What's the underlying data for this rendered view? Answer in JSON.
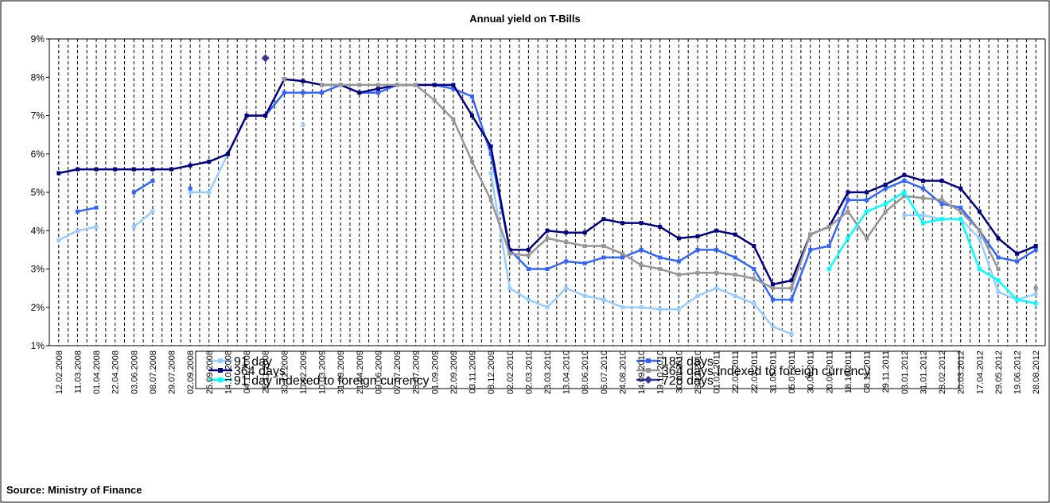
{
  "chart_data": {
    "type": "line",
    "title": "Annual yield on T-Bills",
    "source": "Source: Ministry of Finance",
    "categories": [
      "12.02.2008",
      "11.03.2008",
      "01.04.2008",
      "22.04.2008",
      "03.06.2008",
      "08.07.2008",
      "29.07.2008",
      "02.09.2008",
      "25.09.2008",
      "14.10.2008",
      "04.11.2008",
      "25.11.2008",
      "30.12.2008",
      "10.02.2009",
      "10.03.2009",
      "31.03.2009",
      "21.04.2009",
      "09.06.2009",
      "07.07.2009",
      "28.07.2009",
      "01.09.2009",
      "22.09.2009",
      "03.11.2009",
      "08.12.2009",
      "02.02.2010",
      "02.03.2010",
      "23.03.2010",
      "13.04.2010",
      "08.06.2010",
      "06.07.2010",
      "24.08.2010",
      "14.09.2010",
      "19.10.2010",
      "30.11.2010",
      "28.12.2010",
      "01.02.2011",
      "22.02.2011",
      "22.03.2011",
      "31.05.2011",
      "05.07.2011",
      "30.08.2011",
      "20.09.2011",
      "18.10.2011",
      "08.11.2011",
      "29.11.2011",
      "03.01.2012",
      "31.01.2012",
      "28.02.2012",
      "20.03.2012",
      "17.04.2012",
      "29.05.2012",
      "19.06.2012",
      "28.08.2012"
    ],
    "series": [
      {
        "name": "91 day",
        "color": "#99ccff",
        "marker": "square",
        "values": [
          3.75,
          4.0,
          4.1,
          null,
          4.1,
          4.5,
          null,
          5.0,
          5.0,
          6.0,
          null,
          null,
          null,
          6.75,
          null,
          null,
          7.6,
          7.6,
          7.8,
          null,
          null,
          null,
          null,
          5.5,
          2.5,
          2.2,
          2.0,
          2.5,
          2.3,
          2.2,
          2.0,
          2.0,
          1.95,
          1.95,
          2.3,
          2.5,
          2.3,
          2.1,
          1.5,
          1.3,
          null,
          null,
          null,
          null,
          null,
          4.4,
          4.4,
          4.3,
          4.3,
          3.8,
          2.4,
          2.2,
          2.35
        ]
      },
      {
        "name": "182 days",
        "color": "#3366ff",
        "marker": "square",
        "values": [
          null,
          4.5,
          4.6,
          null,
          5.0,
          5.3,
          null,
          5.1,
          null,
          6.0,
          7.0,
          7.0,
          7.6,
          7.6,
          7.6,
          7.8,
          7.6,
          7.6,
          7.8,
          7.8,
          7.8,
          7.7,
          7.5,
          6.0,
          3.5,
          3.0,
          3.0,
          3.2,
          3.15,
          3.3,
          3.3,
          3.5,
          3.3,
          3.2,
          3.5,
          3.5,
          3.3,
          3.0,
          2.2,
          2.2,
          3.5,
          3.6,
          4.8,
          4.8,
          5.1,
          5.3,
          5.1,
          4.7,
          4.6,
          4.0,
          3.3,
          3.2,
          3.5
        ]
      },
      {
        "name": "364 days",
        "color": "#000080",
        "marker": "square",
        "values": [
          5.5,
          5.6,
          5.6,
          5.6,
          5.6,
          5.6,
          5.6,
          5.7,
          5.8,
          6.0,
          7.0,
          7.0,
          7.95,
          7.9,
          7.8,
          7.8,
          7.6,
          7.7,
          7.8,
          7.8,
          7.8,
          7.8,
          7.0,
          6.2,
          3.5,
          3.5,
          4.0,
          3.95,
          3.95,
          4.3,
          4.2,
          4.2,
          4.1,
          3.8,
          3.85,
          4.0,
          3.9,
          3.6,
          2.6,
          2.7,
          3.9,
          4.1,
          5.0,
          5.0,
          5.2,
          5.45,
          5.3,
          5.3,
          5.1,
          4.5,
          3.8,
          3.4,
          3.6
        ]
      },
      {
        "name": "364 days indexed to foreign currency",
        "color": "#969696",
        "marker": "square",
        "values": [
          null,
          null,
          null,
          null,
          null,
          null,
          null,
          null,
          null,
          null,
          null,
          null,
          7.95,
          null,
          7.8,
          7.8,
          7.8,
          7.8,
          7.8,
          7.8,
          7.4,
          6.9,
          5.8,
          4.8,
          3.4,
          3.35,
          3.8,
          3.7,
          3.6,
          3.6,
          3.4,
          3.1,
          3.0,
          2.85,
          2.9,
          2.9,
          2.85,
          2.75,
          2.5,
          2.5,
          3.9,
          4.1,
          4.5,
          3.8,
          4.5,
          4.9,
          4.85,
          4.8,
          4.5,
          4.0,
          3.0,
          null,
          2.5
        ]
      },
      {
        "name": "91 day indexed to foreign currency",
        "color": "#00ffff",
        "marker": "square",
        "values": [
          null,
          null,
          null,
          null,
          null,
          null,
          null,
          null,
          null,
          null,
          null,
          null,
          null,
          null,
          null,
          null,
          null,
          null,
          null,
          null,
          null,
          null,
          null,
          null,
          null,
          null,
          null,
          null,
          null,
          null,
          null,
          null,
          null,
          null,
          null,
          null,
          null,
          null,
          null,
          null,
          null,
          3.0,
          3.8,
          4.5,
          4.7,
          5.0,
          4.2,
          4.3,
          4.3,
          3.0,
          2.7,
          2.2,
          2.1
        ]
      },
      {
        "name": "728 days",
        "color": "#333399",
        "marker": "diamond",
        "values": [
          null,
          null,
          null,
          null,
          null,
          null,
          null,
          null,
          null,
          null,
          null,
          8.5,
          null,
          null,
          null,
          null,
          null,
          null,
          null,
          null,
          null,
          null,
          null,
          null,
          null,
          null,
          null,
          null,
          null,
          null,
          null,
          null,
          null,
          null,
          null,
          null,
          null,
          null,
          null,
          null,
          null,
          null,
          null,
          null,
          null,
          null,
          null,
          null,
          null,
          null,
          null,
          null,
          null
        ]
      }
    ],
    "ylim": [
      1,
      9
    ],
    "yticks": [
      {
        "value": 1,
        "label": "1%"
      },
      {
        "value": 2,
        "label": "2%"
      },
      {
        "value": 3,
        "label": "3%"
      },
      {
        "value": 4,
        "label": "4%"
      },
      {
        "value": 5,
        "label": "5%"
      },
      {
        "value": 6,
        "label": "6%"
      },
      {
        "value": 7,
        "label": "7%"
      },
      {
        "value": 8,
        "label": "8%"
      },
      {
        "value": 9,
        "label": "9%"
      }
    ],
    "grid": "x-dashed",
    "legend": "bottom"
  }
}
